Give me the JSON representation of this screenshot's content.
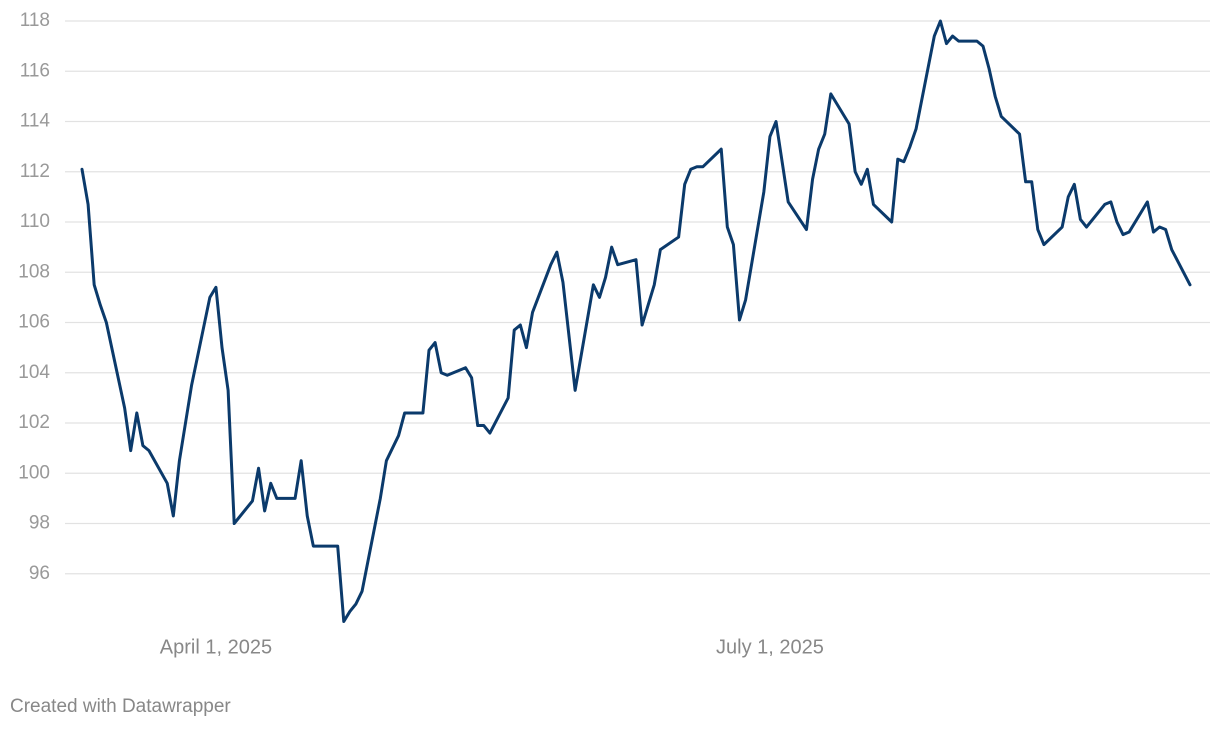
{
  "chart_data": {
    "type": "line",
    "x": [
      "2025-03-10",
      "2025-03-11",
      "2025-03-12",
      "2025-03-13",
      "2025-03-14",
      "2025-03-17",
      "2025-03-18",
      "2025-03-19",
      "2025-03-20",
      "2025-03-21",
      "2025-03-24",
      "2025-03-25",
      "2025-03-26",
      "2025-03-28",
      "2025-03-31",
      "2025-04-01",
      "2025-04-02",
      "2025-04-03",
      "2025-04-04",
      "2025-04-07",
      "2025-04-08",
      "2025-04-09",
      "2025-04-10",
      "2025-04-11",
      "2025-04-14",
      "2025-04-15",
      "2025-04-16",
      "2025-04-17",
      "2025-04-21",
      "2025-04-22",
      "2025-04-23",
      "2025-04-24",
      "2025-04-25",
      "2025-04-28",
      "2025-04-29",
      "2025-05-01",
      "2025-05-02",
      "2025-05-05",
      "2025-05-06",
      "2025-05-07",
      "2025-05-08",
      "2025-05-09",
      "2025-05-12",
      "2025-05-13",
      "2025-05-14",
      "2025-05-15",
      "2025-05-16",
      "2025-05-19",
      "2025-05-20",
      "2025-05-21",
      "2025-05-22",
      "2025-05-23",
      "2025-05-26",
      "2025-05-27",
      "2025-05-28",
      "2025-05-30",
      "2025-06-02",
      "2025-06-03",
      "2025-06-04",
      "2025-06-05",
      "2025-06-06",
      "2025-06-09",
      "2025-06-10",
      "2025-06-12",
      "2025-06-13",
      "2025-06-16",
      "2025-06-17",
      "2025-06-18",
      "2025-06-19",
      "2025-06-20",
      "2025-06-23",
      "2025-06-24",
      "2025-06-25",
      "2025-06-26",
      "2025-06-27",
      "2025-06-30",
      "2025-07-01",
      "2025-07-02",
      "2025-07-03",
      "2025-07-04",
      "2025-07-07",
      "2025-07-08",
      "2025-07-09",
      "2025-07-10",
      "2025-07-11",
      "2025-07-14",
      "2025-07-15",
      "2025-07-16",
      "2025-07-17",
      "2025-07-18",
      "2025-07-21",
      "2025-07-22",
      "2025-07-23",
      "2025-07-24",
      "2025-07-25",
      "2025-07-28",
      "2025-07-29",
      "2025-07-30",
      "2025-07-31",
      "2025-08-01",
      "2025-08-04",
      "2025-08-05",
      "2025-08-06",
      "2025-08-07",
      "2025-08-08",
      "2025-08-11",
      "2025-08-12",
      "2025-08-13",
      "2025-08-14",
      "2025-08-15",
      "2025-08-18",
      "2025-08-19",
      "2025-08-20",
      "2025-08-21",
      "2025-08-22",
      "2025-08-25",
      "2025-08-26",
      "2025-08-27",
      "2025-08-28",
      "2025-08-29",
      "2025-09-01",
      "2025-09-02",
      "2025-09-03",
      "2025-09-04",
      "2025-09-05",
      "2025-09-08"
    ],
    "values": [
      112.1,
      110.7,
      107.5,
      106.7,
      106.0,
      102.6,
      100.9,
      102.4,
      101.1,
      100.9,
      99.6,
      98.3,
      100.5,
      103.5,
      107.0,
      107.4,
      105.0,
      103.3,
      98.0,
      98.9,
      100.2,
      98.5,
      99.6,
      99.0,
      99.0,
      100.5,
      98.3,
      97.1,
      97.1,
      94.1,
      94.5,
      94.8,
      95.3,
      99.0,
      100.5,
      101.5,
      102.4,
      102.4,
      104.9,
      105.2,
      104.0,
      103.9,
      104.2,
      103.8,
      101.9,
      101.9,
      101.6,
      103.0,
      105.7,
      105.9,
      105.0,
      106.4,
      108.3,
      108.8,
      107.6,
      103.3,
      107.5,
      107.0,
      107.8,
      109.0,
      108.3,
      108.5,
      105.9,
      107.5,
      108.9,
      109.4,
      111.5,
      112.1,
      112.2,
      112.2,
      112.9,
      109.8,
      109.1,
      106.1,
      106.9,
      111.2,
      113.4,
      114.0,
      112.4,
      110.8,
      109.7,
      111.7,
      112.9,
      113.5,
      115.1,
      113.9,
      112.0,
      111.5,
      112.1,
      110.7,
      110.0,
      112.5,
      112.4,
      113.0,
      113.7,
      117.4,
      118.0,
      117.1,
      117.4,
      117.2,
      117.2,
      117.0,
      116.1,
      115.0,
      114.2,
      113.5,
      111.6,
      111.6,
      109.7,
      109.1,
      109.8,
      111.0,
      111.5,
      110.1,
      109.8,
      110.7,
      110.8,
      110.0,
      109.5,
      109.6,
      110.8,
      109.6,
      109.8,
      109.7,
      108.9,
      107.5
    ],
    "color": "#0b3a6b",
    "xlim": [
      "2025-03-10",
      "2025-09-08"
    ],
    "xticks": [
      {
        "value": "2025-04-01",
        "label": "April 1, 2025"
      },
      {
        "value": "2025-07-01",
        "label": "July 1, 2025"
      }
    ],
    "ylim": [
      94,
      118
    ],
    "yticks": [
      96,
      98,
      100,
      102,
      104,
      106,
      108,
      110,
      112,
      114,
      116,
      118
    ],
    "grid": true
  },
  "footer": "Created with Datawrapper"
}
